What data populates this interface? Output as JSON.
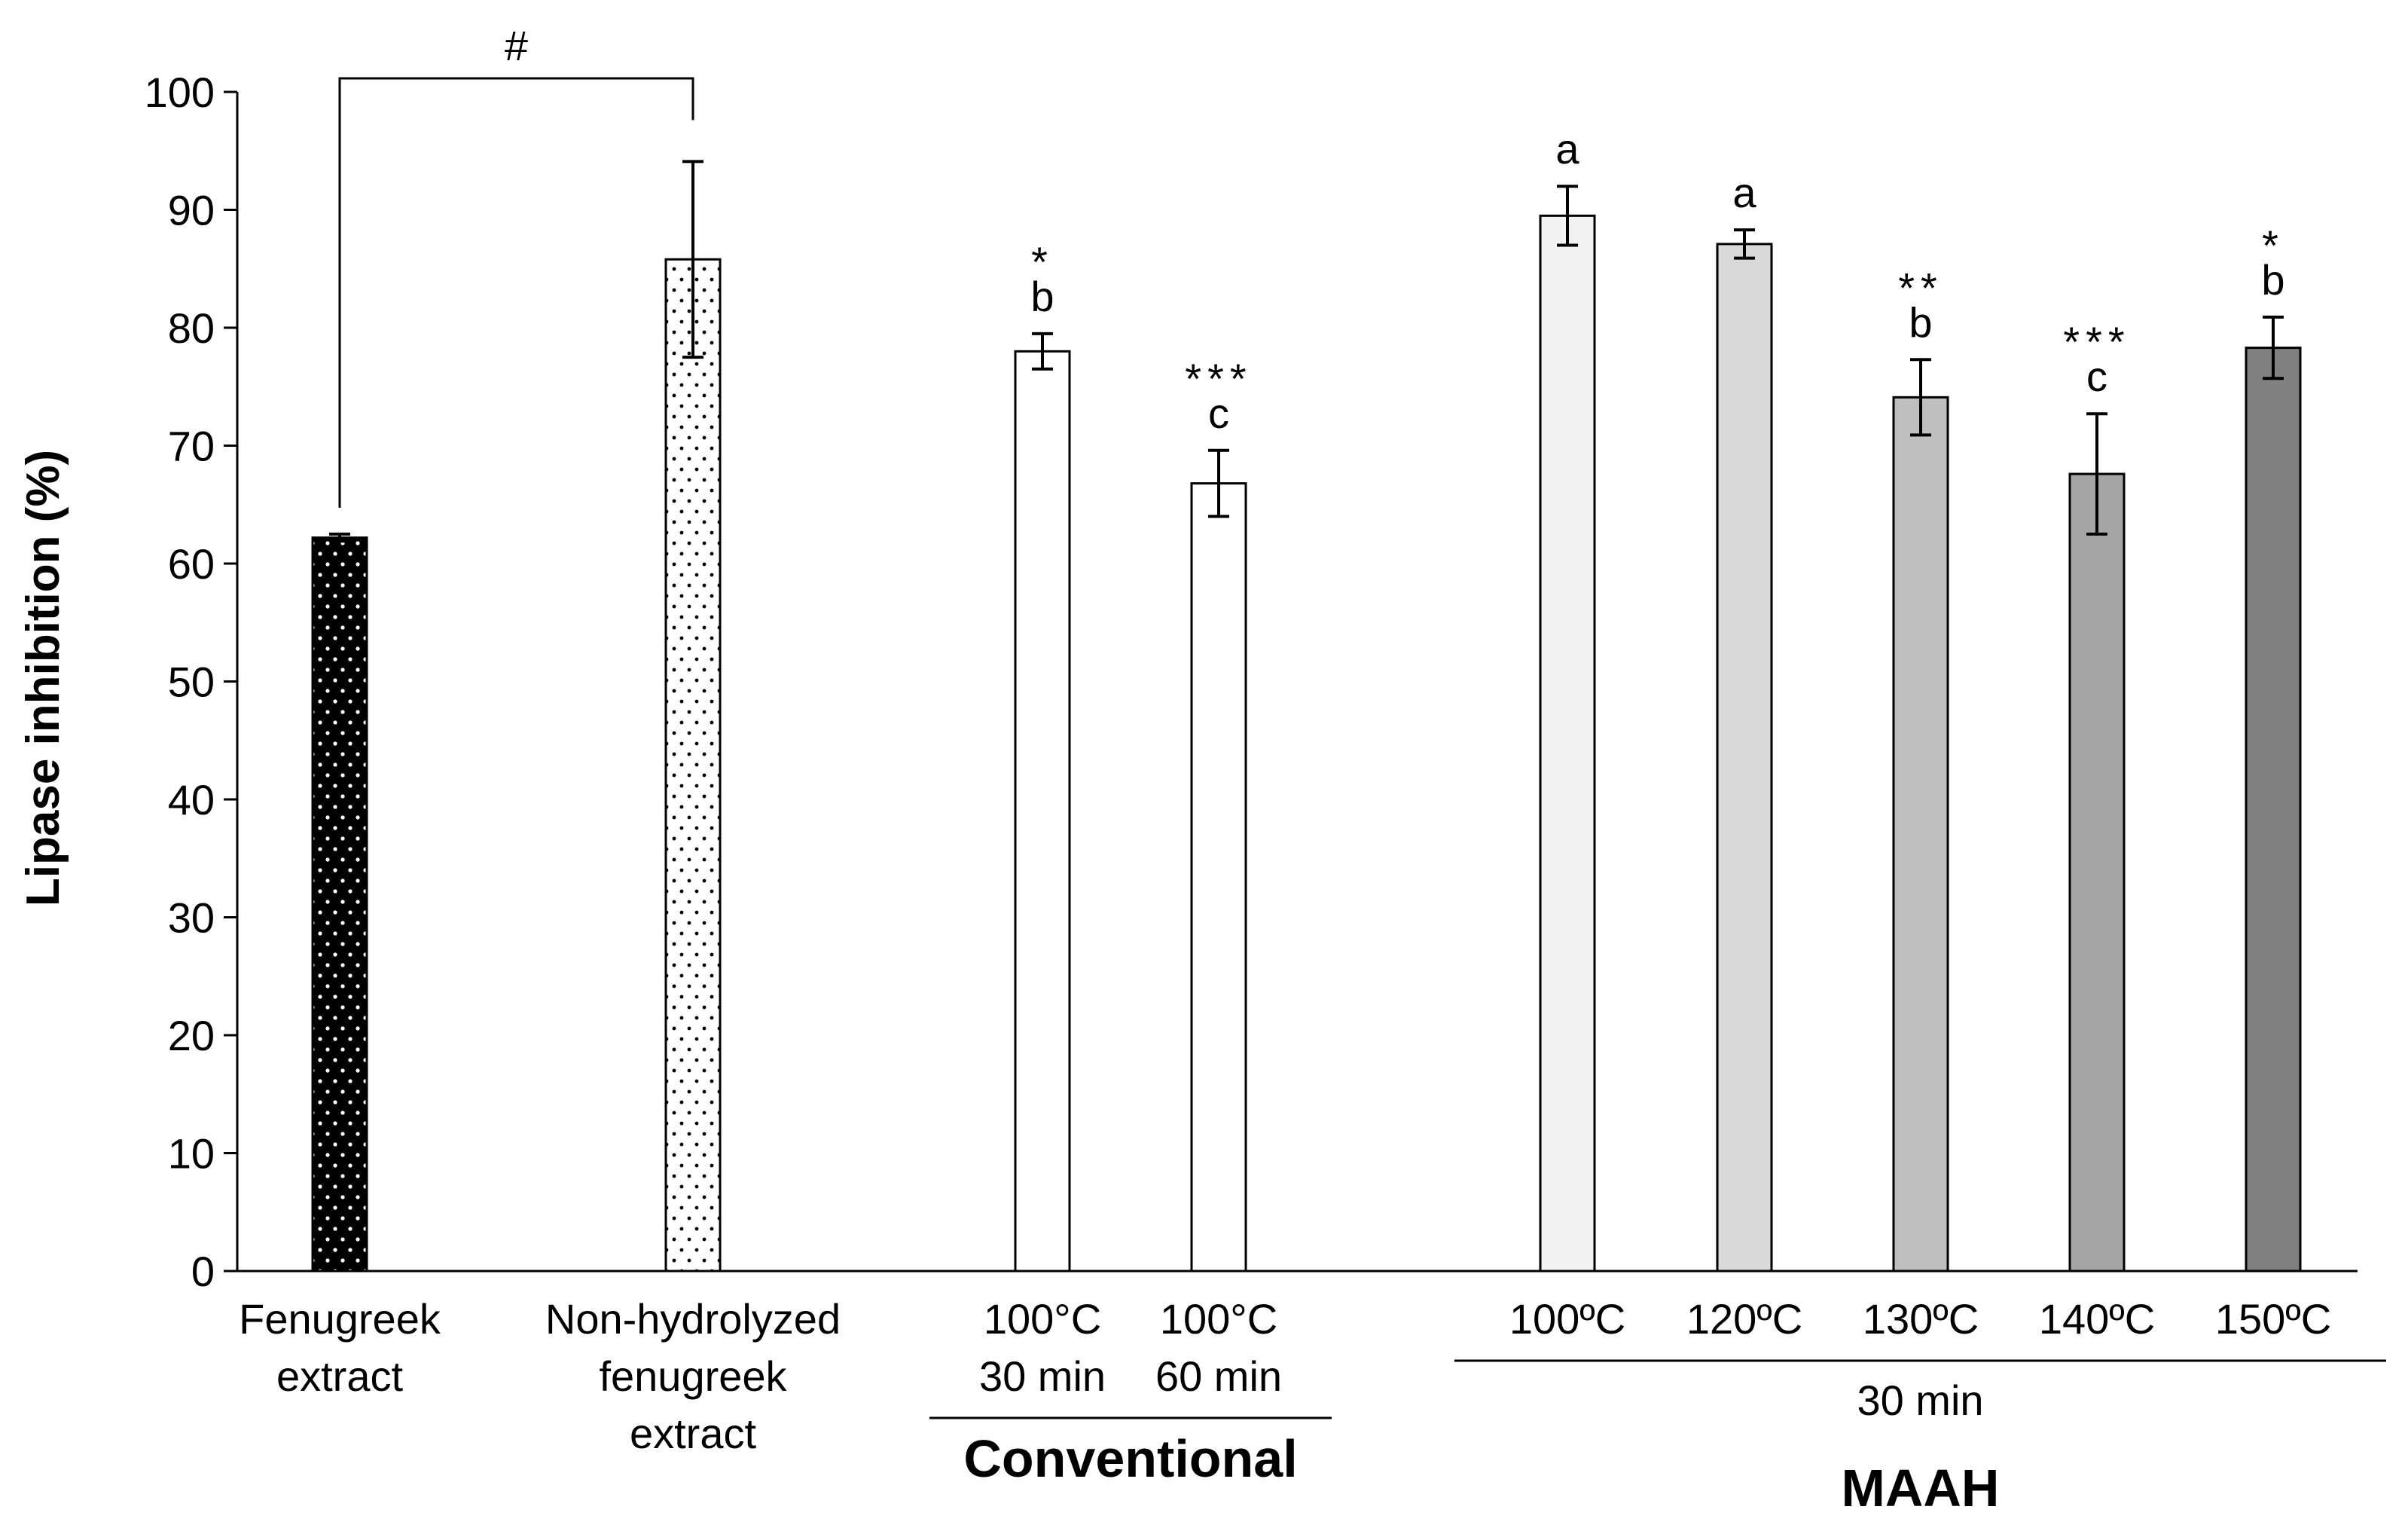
{
  "chart_data": {
    "type": "bar",
    "ylabel": "Lipase inhibition (%)",
    "xlabel": "",
    "ylim": [
      0,
      100
    ],
    "yticks": [
      0,
      10,
      20,
      30,
      40,
      50,
      60,
      70,
      80,
      90,
      100
    ],
    "bars": [
      {
        "label": [
          "Fenugreek",
          "extract"
        ],
        "value": 62.2,
        "error": 0.3,
        "fill": "#000000",
        "pattern": "dots-white",
        "letter": "",
        "stars": ""
      },
      {
        "label": [
          "Non-hydrolyzed",
          "fenugreek",
          "extract"
        ],
        "value": 85.8,
        "error": 8.3,
        "fill": "#ffffff",
        "pattern": "dots-black",
        "letter": "",
        "stars": ""
      },
      {
        "label": [
          "100°C",
          "30 min"
        ],
        "value": 78.0,
        "error": 1.5,
        "fill": "#ffffff",
        "pattern": "none",
        "letter": "b",
        "stars": "*"
      },
      {
        "label": [
          "100°C",
          "60 min"
        ],
        "value": 66.8,
        "error": 2.8,
        "fill": "#ffffff",
        "pattern": "none",
        "letter": "c",
        "stars": "***"
      },
      {
        "label": [
          "100ºC"
        ],
        "value": 89.5,
        "error": 2.5,
        "fill": "#f2f2f2",
        "pattern": "none",
        "letter": "a",
        "stars": ""
      },
      {
        "label": [
          "120ºC"
        ],
        "value": 87.1,
        "error": 1.2,
        "fill": "#d9d9d9",
        "pattern": "none",
        "letter": "a",
        "stars": ""
      },
      {
        "label": [
          "130ºC"
        ],
        "value": 74.1,
        "error": 3.2,
        "fill": "#bfbfbf",
        "pattern": "none",
        "letter": "b",
        "stars": "**"
      },
      {
        "label": [
          "140ºC"
        ],
        "value": 67.6,
        "error": 5.1,
        "fill": "#a6a6a6",
        "pattern": "none",
        "letter": "c",
        "stars": "***"
      },
      {
        "label": [
          "150ºC"
        ],
        "value": 78.3,
        "error": 2.6,
        "fill": "#808080",
        "pattern": "none",
        "letter": "b",
        "stars": "*"
      }
    ],
    "comparison": {
      "symbol": "#",
      "from_bar": 0,
      "to_bar": 1
    },
    "groups": [
      {
        "name": "Conventional",
        "bars": [
          2,
          3
        ],
        "sublabel": ""
      },
      {
        "name": "MAAH",
        "bars": [
          4,
          5,
          6,
          7,
          8
        ],
        "sublabel": "30 min"
      }
    ]
  }
}
